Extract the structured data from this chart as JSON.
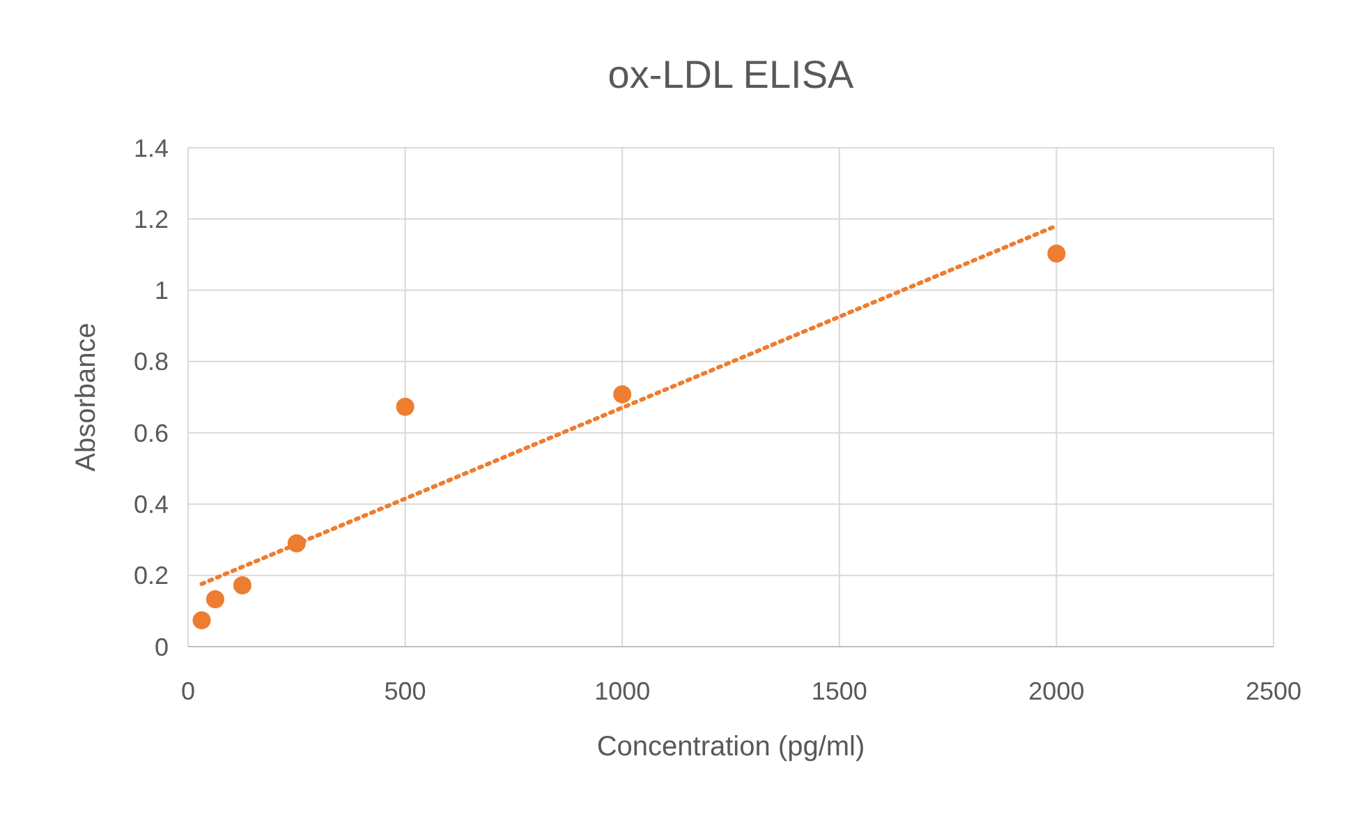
{
  "chart_data": {
    "type": "scatter",
    "title": "ox-LDL ELISA",
    "xlabel": "Concentration (pg/ml)",
    "ylabel": "Absorbance",
    "xlim": [
      0,
      2500
    ],
    "xticks": [
      0,
      500,
      1000,
      1500,
      2000,
      2500
    ],
    "ylim": [
      0,
      1.4
    ],
    "yticks": [
      0,
      0.2,
      0.4,
      0.6,
      0.8,
      1,
      1.2,
      1.4
    ],
    "grid": true,
    "series": [
      {
        "type": "scatter",
        "color": "#ed7d31",
        "marker": "circle",
        "x": [
          31.25,
          62.5,
          125,
          250,
          500,
          1000,
          2000
        ],
        "values": [
          0.074,
          0.133,
          0.172,
          0.29,
          0.673,
          0.708,
          1.103
        ]
      },
      {
        "type": "line",
        "color": "#ed7d31",
        "marker": "none",
        "line_style": "dotted",
        "x": [
          31.25,
          2000
        ],
        "values": [
          0.176,
          1.181
        ]
      }
    ]
  }
}
